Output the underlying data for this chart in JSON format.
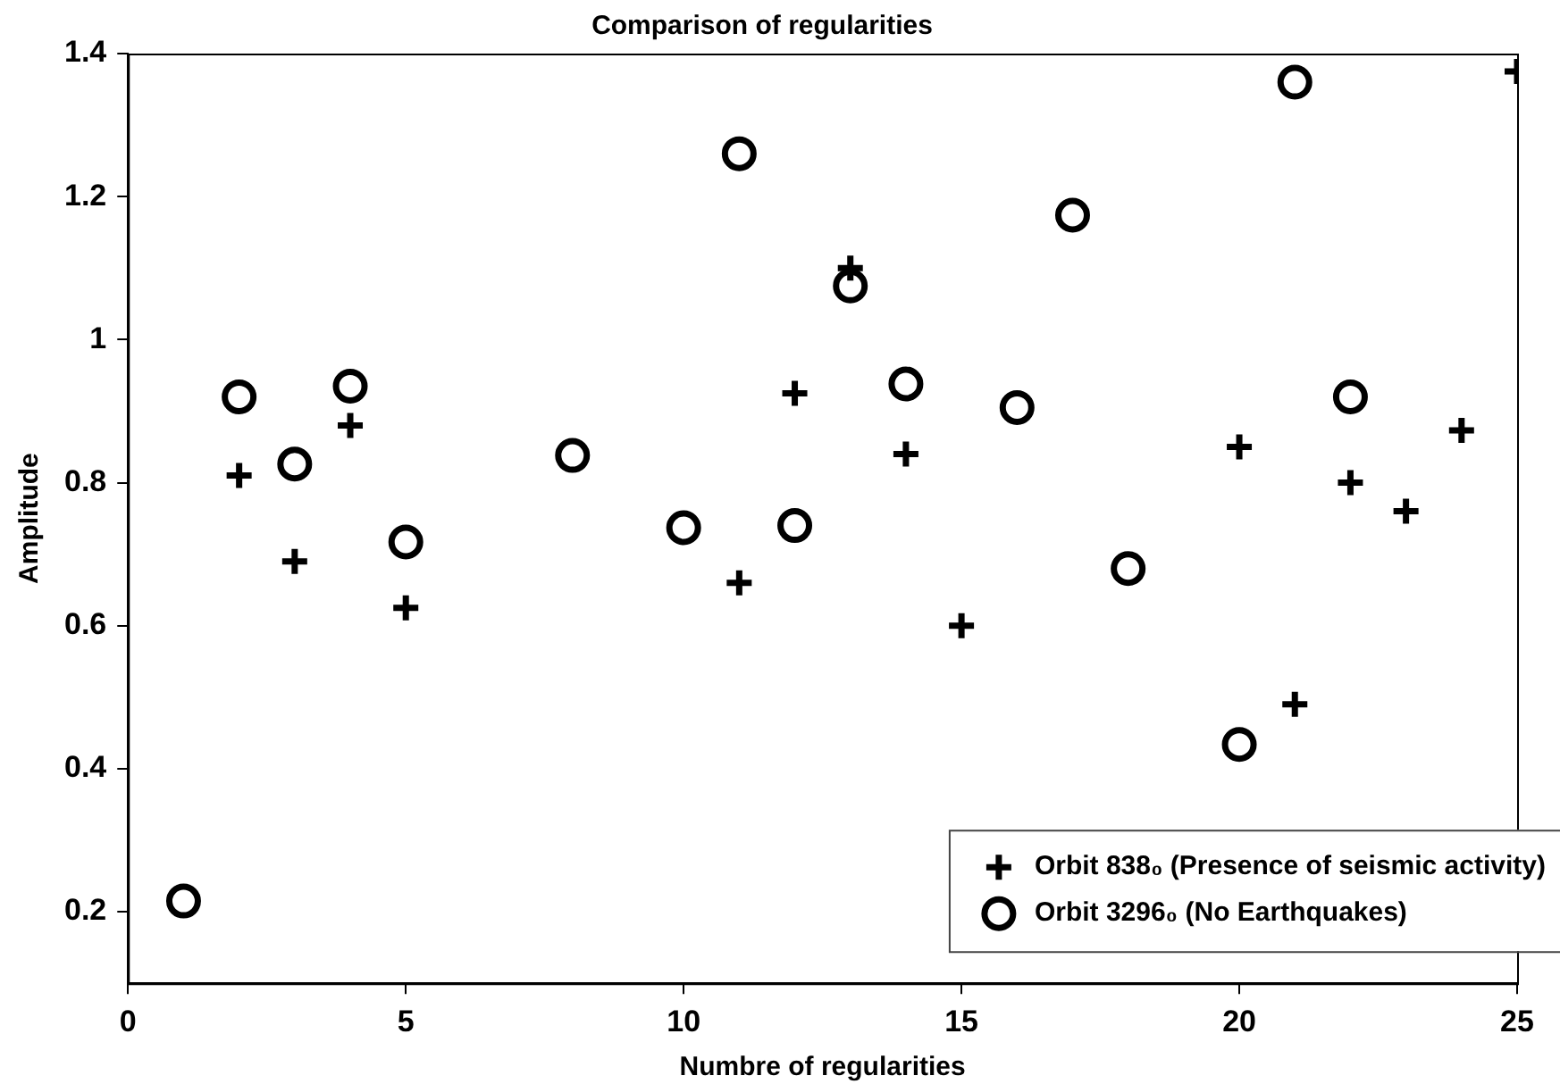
{
  "chart_data": {
    "type": "scatter",
    "title": "Comparison of regularities",
    "xlabel": "Numbre of regularities",
    "ylabel": "Amplitude",
    "xlim": [
      0,
      25
    ],
    "xticks": [
      0,
      5,
      10,
      15,
      20,
      25
    ],
    "ylim": [
      0.1,
      1.4
    ],
    "yticks": [
      0.2,
      0.4,
      0.6,
      0.8,
      1,
      1.2,
      1.4
    ],
    "grid": false,
    "legend": "bottom right",
    "series": [
      {
        "name": "Orbit 838₀ (Presence of seismic activity)",
        "color": "#000000",
        "marker": "cross",
        "x": [
          2,
          3,
          4,
          5,
          11,
          12,
          13,
          14,
          15,
          20,
          21,
          22,
          23,
          24,
          25
        ],
        "values": [
          0.81,
          0.69,
          0.88,
          0.625,
          0.66,
          0.925,
          1.1,
          0.84,
          0.6,
          0.85,
          0.49,
          0.8,
          0.76,
          0.873,
          1.375
        ]
      },
      {
        "name": "Orbit 3296₀ (No Earthquakes)",
        "color": "#000000",
        "marker": "circle",
        "x": [
          1,
          2,
          3,
          4,
          5,
          8,
          10,
          11,
          12,
          13,
          14,
          16,
          17,
          18,
          20,
          21,
          22
        ],
        "values": [
          0.215,
          0.92,
          0.826,
          0.935,
          0.717,
          0.838,
          0.737,
          1.26,
          0.74,
          1.075,
          0.938,
          0.905,
          1.174,
          0.68,
          0.434,
          1.36,
          0.92
        ]
      }
    ]
  }
}
